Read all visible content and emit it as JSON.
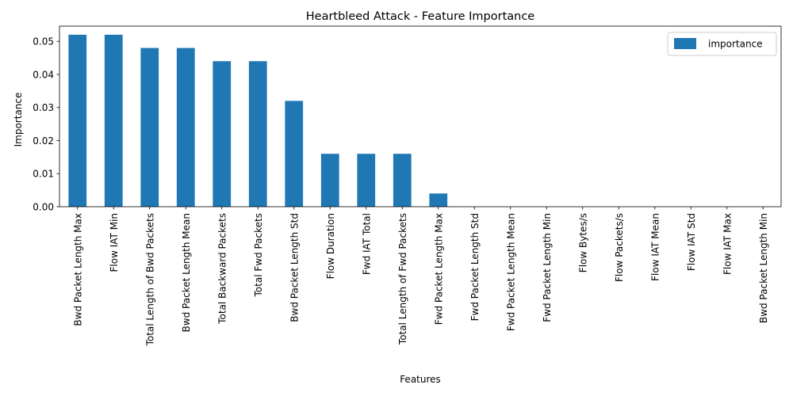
{
  "chart_data": {
    "type": "bar",
    "title": "Heartbleed Attack - Feature Importance",
    "xlabel": "Features",
    "ylabel": "Importance",
    "ylim": [
      0,
      0.0546
    ],
    "yticks": [
      0.0,
      0.01,
      0.02,
      0.03,
      0.04,
      0.05
    ],
    "ytick_labels": [
      "0.00",
      "0.01",
      "0.02",
      "0.03",
      "0.04",
      "0.05"
    ],
    "grid": false,
    "legend_position": "top-right",
    "bar_color": "#1f77b4",
    "categories": [
      "Bwd Packet Length Max",
      "Flow IAT Min",
      "Total Length of Bwd Packets",
      "Bwd Packet Length Mean",
      "Total Backward Packets",
      "Total Fwd Packets",
      "Bwd Packet Length Std",
      "Flow Duration",
      "Fwd IAT Total",
      "Total Length of Fwd Packets",
      "Fwd Packet Length Max",
      "Fwd Packet Length Std",
      "Fwd Packet Length Mean",
      "Fwd Packet Length Min",
      "Flow Bytes/s",
      "Flow Packets/s",
      "Flow IAT Mean",
      "Flow IAT Std",
      "Flow IAT Max",
      "Bwd Packet Length Min"
    ],
    "series": [
      {
        "name": "importance",
        "values": [
          0.052,
          0.052,
          0.048,
          0.048,
          0.044,
          0.044,
          0.032,
          0.016,
          0.016,
          0.016,
          0.004,
          0,
          0,
          0,
          0,
          0,
          0,
          0,
          0,
          0
        ]
      }
    ]
  }
}
